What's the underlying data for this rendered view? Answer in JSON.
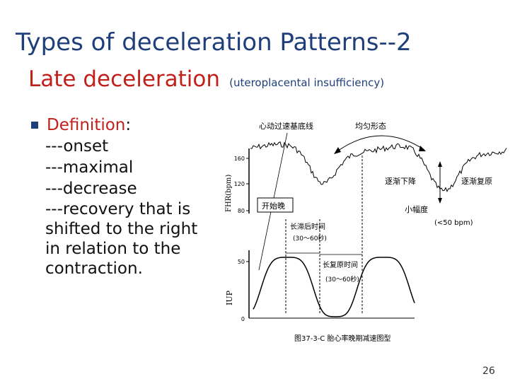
{
  "title": {
    "line1": "Types of deceleration Patterns--2",
    "line2_main": "Late deceleration",
    "line2_sub": "(uteroplacental  insufficiency)"
  },
  "definition": {
    "term": "Definition",
    "colon": ":",
    "items": [
      "---onset",
      "---maximal",
      "---decrease",
      "---recovery that is shifted to the right in relation to the contraction."
    ]
  },
  "figure": {
    "fhr_axis_label": "FHR(bpm)",
    "fhr_ticks": [
      "160",
      "120",
      "80"
    ],
    "iup_axis_label": "IUP",
    "iup_ticks": [
      "50",
      "0"
    ],
    "ann_baseline": "心动过速基底线",
    "ann_uniform": "均匀形态",
    "ann_gradual_fall": "逐渐下降",
    "ann_gradual_recover": "逐渐复原",
    "ann_small_amp": "小幅度",
    "ann_amp_value": "(<50 bpm)",
    "ann_start": "开始晚",
    "ann_lag1": "长滞后时间",
    "ann_lag1_range": "(30～60秒)",
    "ann_lag2": "长复原时间",
    "ann_lag2_range": "(30～60秒)",
    "caption": "图37-3-C 胎心率晚期减速图型"
  },
  "page_number": "26"
}
